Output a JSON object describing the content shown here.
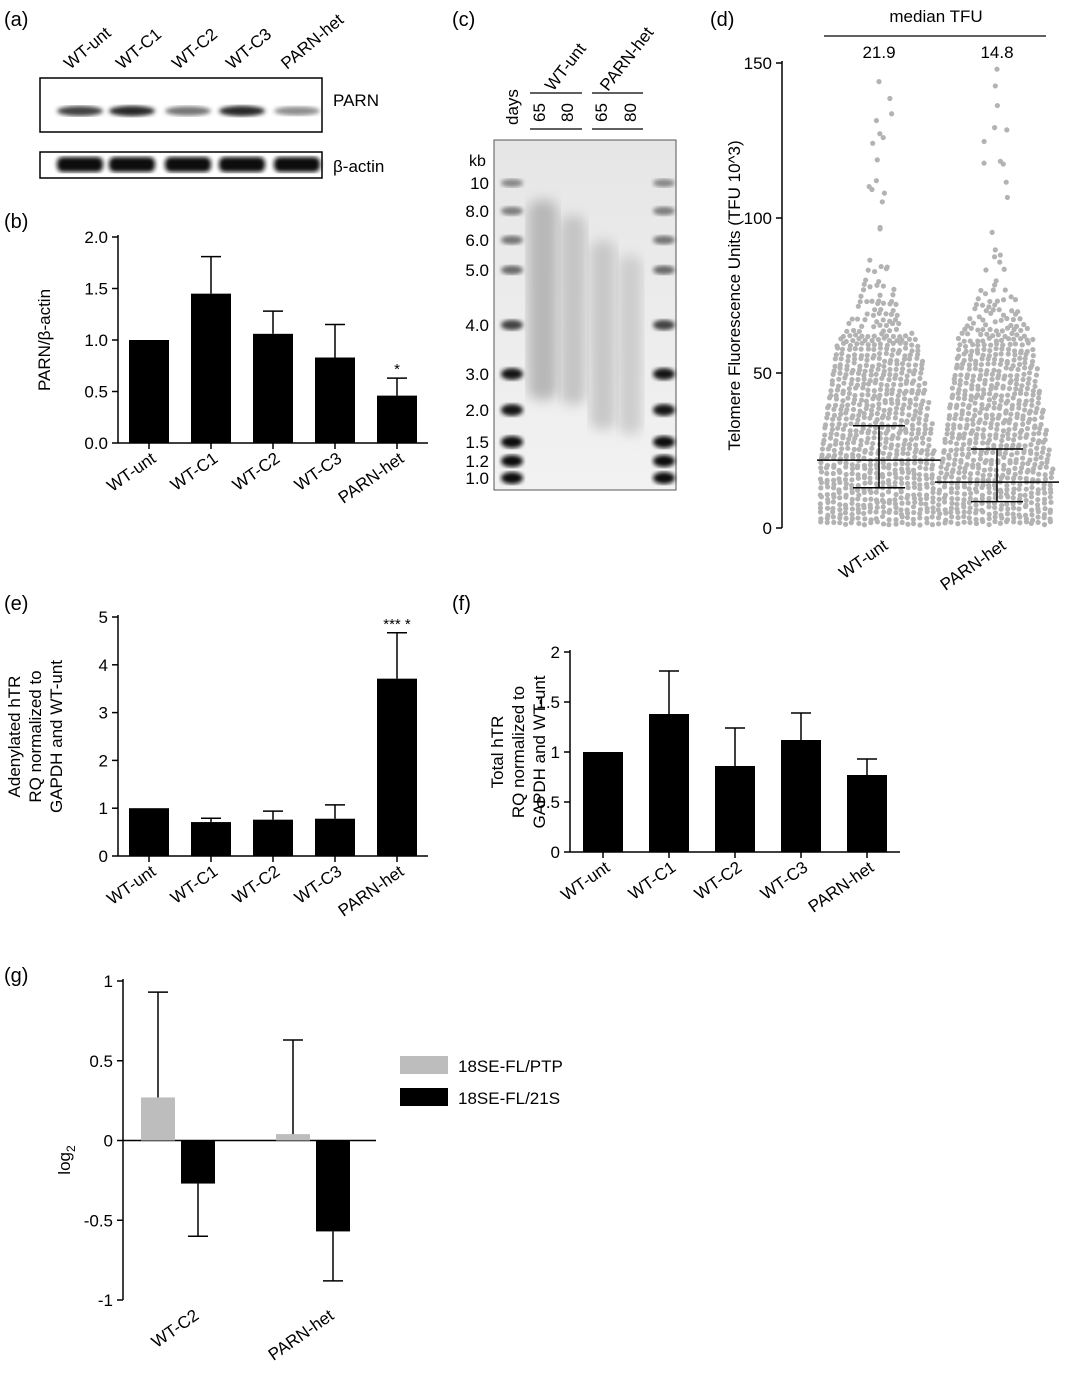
{
  "panel_labels": {
    "a": "(a)",
    "b": "(b)",
    "c": "(c)",
    "d": "(d)",
    "e": "(e)",
    "f": "(f)",
    "g": "(g)"
  },
  "blot_a": {
    "lanes": [
      "WT-unt",
      "WT-C1",
      "WT-C2",
      "WT-C3",
      "PARN-het"
    ],
    "band1_label": "PARN",
    "band2_label": "β-actin",
    "parn_intensity": [
      0.75,
      0.85,
      0.55,
      0.85,
      0.45
    ]
  },
  "gel_c": {
    "days_label": "days",
    "group1_label": "WT-unt",
    "group2_label": "PARN-het",
    "days": [
      "65",
      "80",
      "65",
      "80"
    ],
    "kb_label": "kb",
    "markers": [
      "10",
      "8.0",
      "6.0",
      "5.0",
      "4.0",
      "3.0",
      "2.0",
      "1.5",
      "1.2",
      "1.0"
    ]
  },
  "chart_data": [
    {
      "id": "b",
      "type": "bar",
      "categories": [
        "WT-unt",
        "WT-C1",
        "WT-C2",
        "WT-C3",
        "PARN-het"
      ],
      "values": [
        1.0,
        1.45,
        1.06,
        0.83,
        0.46
      ],
      "errors": [
        0,
        0.36,
        0.22,
        0.32,
        0.17
      ],
      "ylabel": "PARN/β-actin",
      "ylim": [
        0,
        2.0
      ],
      "yticks": [
        "0.0",
        "0.5",
        "1.0",
        "1.5",
        "2.0"
      ],
      "ytick_values": [
        0,
        0.5,
        1.0,
        1.5,
        2.0
      ],
      "annotations": [
        "",
        "",
        "",
        "",
        "*"
      ],
      "color": "#000000"
    },
    {
      "id": "d",
      "type": "scatter",
      "categories": [
        "WT-unt",
        "PARN-het"
      ],
      "header": "median TFU",
      "medians_text": [
        "21.9",
        "14.8"
      ],
      "median": [
        21.9,
        14.8
      ],
      "iqr": [
        [
          13.0,
          33.0
        ],
        [
          8.5,
          25.5
        ]
      ],
      "ylabel": "Telomere Fluorescence Units (TFU 10^3)",
      "ylim": [
        0,
        150
      ],
      "yticks": [
        "0",
        "50",
        "100",
        "150"
      ],
      "ytick_values": [
        0,
        50,
        100,
        150
      ],
      "max_points": [
        144,
        148
      ],
      "color": "#b3b3b3"
    },
    {
      "id": "e",
      "type": "bar",
      "categories": [
        "WT-unt",
        "WT-C1",
        "WT-C2",
        "WT-C3",
        "PARN-het"
      ],
      "values": [
        1.0,
        0.71,
        0.76,
        0.78,
        3.71
      ],
      "errors": [
        0,
        0.08,
        0.18,
        0.29,
        0.96
      ],
      "ylabel_lines": [
        "Adenylated hTR",
        "RQ normalized to",
        "GAPDH and WT-unt"
      ],
      "ylim": [
        0,
        5
      ],
      "yticks": [
        "0",
        "1",
        "2",
        "3",
        "4",
        "5"
      ],
      "ytick_values": [
        0,
        1,
        2,
        3,
        4,
        5
      ],
      "annotations": [
        "",
        "",
        "",
        "",
        "*** *"
      ],
      "color": "#000000"
    },
    {
      "id": "f",
      "type": "bar",
      "categories": [
        "WT-unt",
        "WT-C1",
        "WT-C2",
        "WT-C3",
        "PARN-het"
      ],
      "values": [
        1.0,
        1.38,
        0.86,
        1.12,
        0.77
      ],
      "errors": [
        0,
        0.43,
        0.38,
        0.27,
        0.16
      ],
      "ylabel_lines": [
        "Total hTR",
        "RQ normalized to",
        "GAPDH and WT-unt"
      ],
      "ylim": [
        0,
        2
      ],
      "yticks": [
        "0",
        "0.5",
        "1",
        "1.5",
        "2"
      ],
      "ytick_values": [
        0,
        0.5,
        1,
        1.5,
        2
      ],
      "color": "#000000"
    },
    {
      "id": "g",
      "type": "bar",
      "categories": [
        "WT-C2",
        "PARN-het"
      ],
      "series": [
        {
          "name": "18SE-FL/PTP",
          "values": [
            0.27,
            0.04
          ],
          "errors": [
            0.66,
            0.59
          ],
          "color": "#bdbdbd"
        },
        {
          "name": "18SE-FL/21S",
          "values": [
            -0.27,
            -0.57
          ],
          "errors": [
            0.33,
            0.31
          ],
          "color": "#000000"
        }
      ],
      "ylabel": "log2",
      "ylim": [
        -1,
        1
      ],
      "yticks": [
        "-1",
        "-0.5",
        "0",
        "0.5",
        "1"
      ],
      "ytick_values": [
        -1,
        -0.5,
        0,
        0.5,
        1
      ],
      "legend": "right"
    }
  ]
}
